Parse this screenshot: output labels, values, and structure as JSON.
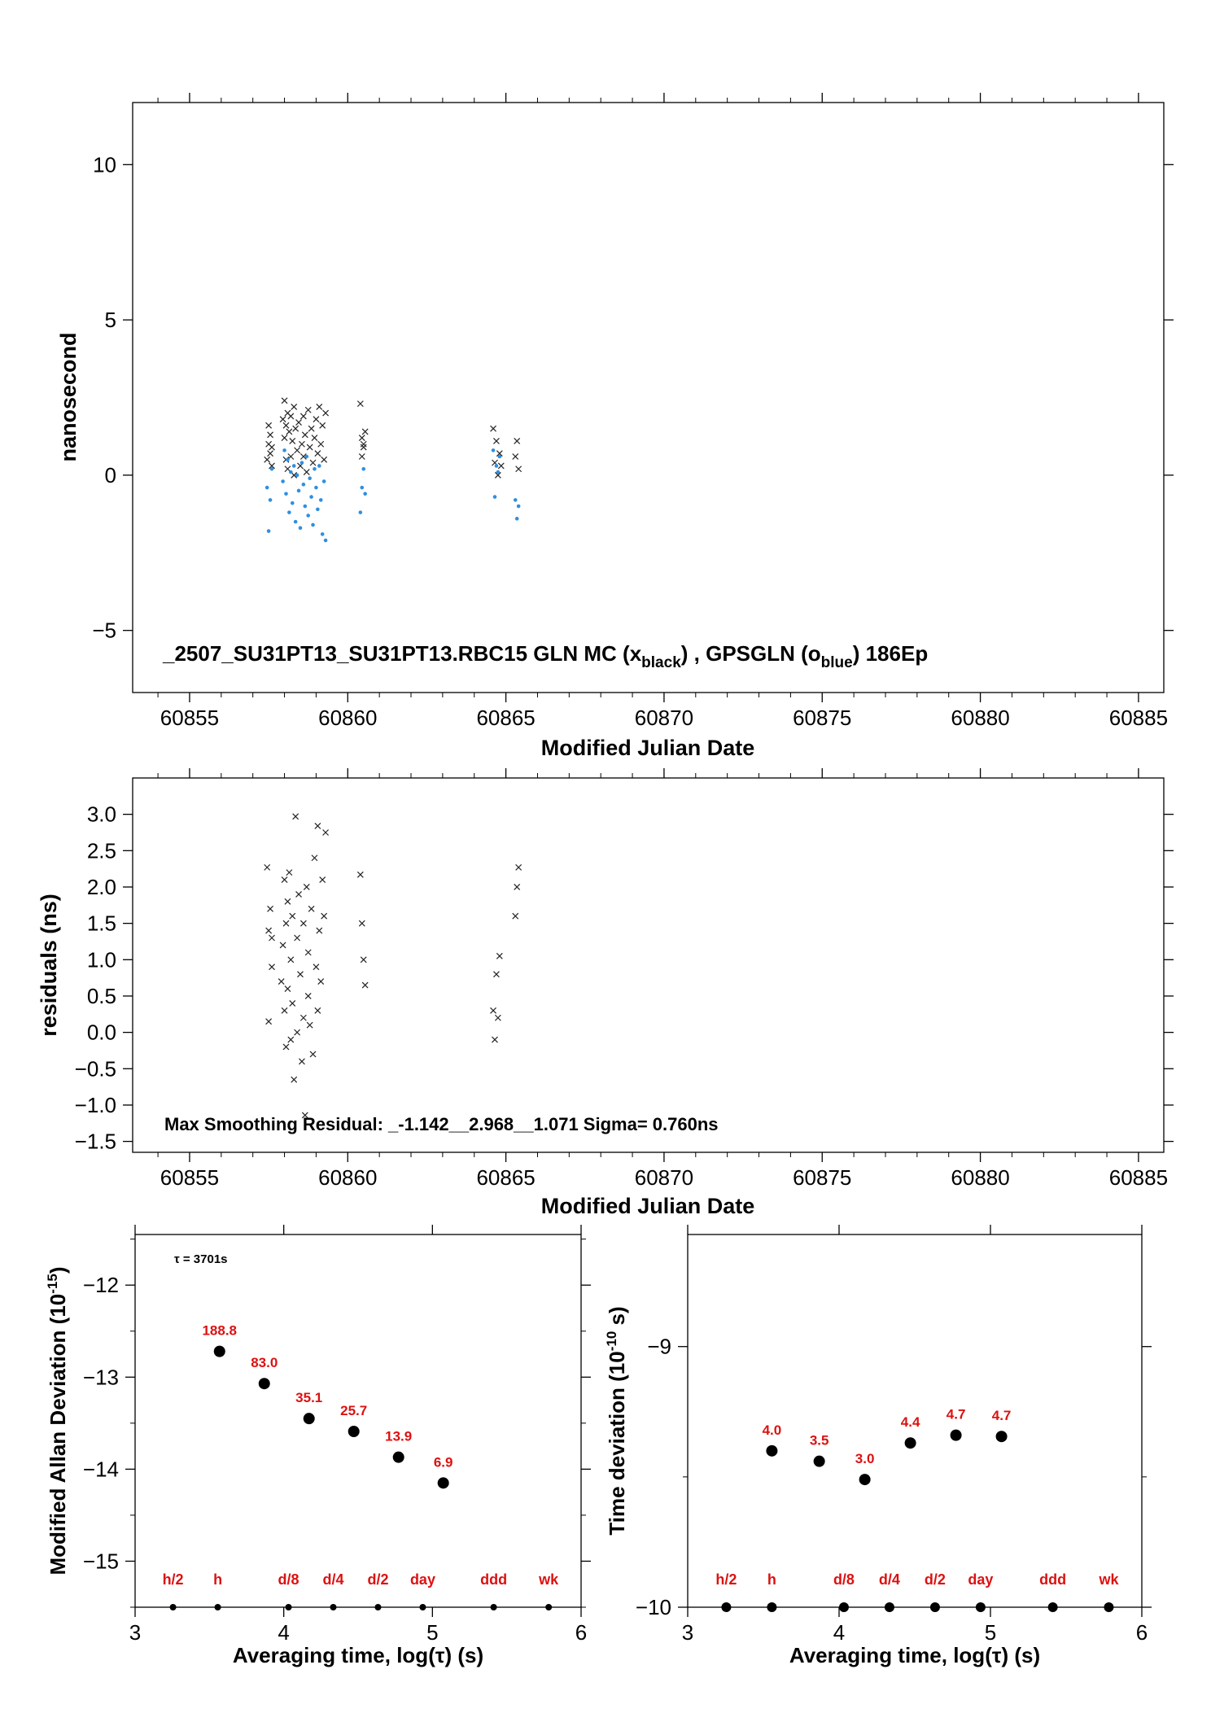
{
  "chart_data": [
    {
      "type": "scatter",
      "title": "",
      "annotation": {
        "prefix": "_2507_SU31PT13_SU31PT13.RBC15     GLN MC (x",
        "sub1": "black",
        "mid": ") ,  GPSGLN (o",
        "sub2": "blue",
        "suffix": ")  186Ep"
      },
      "xlabel": "Modified Julian Date",
      "ylabel": "nanosecond",
      "xlim": [
        60853.2,
        60885.8
      ],
      "ylim": [
        -7,
        12
      ],
      "xticks": [
        60855,
        60860,
        60865,
        60870,
        60875,
        60880,
        60885
      ],
      "xtick_labels": [
        "60855",
        "60860",
        "60865",
        "60870",
        "60875",
        "60880",
        "60885"
      ],
      "yticks": [
        -5,
        0,
        5,
        10
      ],
      "ytick_labels": [
        "−5",
        "0",
        "5",
        "10"
      ],
      "series": [
        {
          "color": "#222222",
          "marker": "x",
          "x": [
            60857.45,
            60857.5,
            60857.5,
            60857.55,
            60857.55,
            60857.6,
            60857.6,
            60857.95,
            60858.0,
            60858.0,
            60858.05,
            60858.05,
            60858.1,
            60858.1,
            60858.15,
            60858.2,
            60858.2,
            60858.25,
            60858.3,
            60858.3,
            60858.35,
            60858.4,
            60858.45,
            60858.5,
            60858.55,
            60858.6,
            60858.6,
            60858.65,
            60858.7,
            60858.75,
            60858.8,
            60858.85,
            60858.9,
            60858.95,
            60859.0,
            60859.05,
            60859.1,
            60859.15,
            60859.2,
            60859.25,
            60859.3,
            60860.4,
            60860.45,
            60860.45,
            60860.5,
            60860.5,
            60860.55,
            60864.6,
            60864.65,
            60864.7,
            60864.75,
            60864.8,
            60864.85,
            60865.3,
            60865.35,
            60865.4
          ],
          "y": [
            0.5,
            1.0,
            1.6,
            0.7,
            1.3,
            0.9,
            0.3,
            1.8,
            2.4,
            1.2,
            1.6,
            0.5,
            2.0,
            0.2,
            1.4,
            1.9,
            0.6,
            1.1,
            2.2,
            0.0,
            1.5,
            0.8,
            1.7,
            0.3,
            1.0,
            1.9,
            0.6,
            1.3,
            0.1,
            2.1,
            0.9,
            1.5,
            0.4,
            1.2,
            1.8,
            0.7,
            2.2,
            1.0,
            1.6,
            0.5,
            2.0,
            2.3,
            1.2,
            0.6,
            1.0,
            0.9,
            1.4,
            1.5,
            0.4,
            1.1,
            0.0,
            0.7,
            0.3,
            0.6,
            1.1,
            0.2
          ]
        },
        {
          "color": "#2f8fe0",
          "marker": "dot",
          "x": [
            60857.45,
            60857.5,
            60857.55,
            60857.6,
            60857.95,
            60858.0,
            60858.05,
            60858.1,
            60858.15,
            60858.2,
            60858.25,
            60858.3,
            60858.35,
            60858.4,
            60858.45,
            60858.5,
            60858.55,
            60858.6,
            60858.65,
            60858.7,
            60858.75,
            60858.8,
            60858.85,
            60858.9,
            60858.95,
            60859.0,
            60859.05,
            60859.1,
            60859.15,
            60859.2,
            60859.25,
            60859.3,
            60860.4,
            60860.45,
            60860.5,
            60860.55,
            60864.6,
            60864.65,
            60864.7,
            60864.75,
            60864.8,
            60865.3,
            60865.35,
            60865.4
          ],
          "y": [
            -0.4,
            -1.8,
            -0.8,
            0.2,
            -0.2,
            0.8,
            -0.6,
            0.5,
            -1.2,
            0.1,
            -0.9,
            0.3,
            -1.5,
            0.0,
            -0.5,
            -1.7,
            0.4,
            -0.3,
            -1.0,
            0.6,
            -1.3,
            -0.1,
            -0.7,
            -1.6,
            0.2,
            -0.4,
            -1.1,
            0.3,
            -0.8,
            -1.9,
            -0.2,
            -2.1,
            -1.2,
            -0.4,
            0.2,
            -0.6,
            0.8,
            -0.7,
            0.3,
            0.1,
            0.6,
            -0.8,
            -1.4,
            -1.0
          ]
        }
      ]
    },
    {
      "type": "scatter",
      "title": "",
      "annotation_text": "Max Smoothing Residual: _-1.142__2.968__1.071  Sigma= 0.760ns",
      "xlabel": "Modified Julian Date",
      "ylabel": "residuals (ns)",
      "xlim": [
        60853.2,
        60885.8
      ],
      "ylim": [
        -1.65,
        3.5
      ],
      "xticks": [
        60855,
        60860,
        60865,
        60870,
        60875,
        60880,
        60885
      ],
      "xtick_labels": [
        "60855",
        "60860",
        "60865",
        "60870",
        "60875",
        "60880",
        "60885"
      ],
      "yticks": [
        -1.5,
        -1.0,
        -0.5,
        0.0,
        0.5,
        1.0,
        1.5,
        2.0,
        2.5,
        3.0
      ],
      "ytick_labels": [
        "−1.5",
        "−1.0",
        "−0.5",
        "0.0",
        "0.5",
        "1.0",
        "1.5",
        "2.0",
        "2.5",
        "3.0"
      ],
      "series": [
        {
          "color": "#222222",
          "marker": "x",
          "x": [
            60857.45,
            60857.5,
            60857.5,
            60857.55,
            60857.6,
            60857.6,
            60857.9,
            60857.95,
            60858.0,
            60858.0,
            60858.05,
            60858.05,
            60858.1,
            60858.1,
            60858.15,
            60858.2,
            60858.2,
            60858.25,
            60858.25,
            60858.3,
            60858.35,
            60858.4,
            60858.4,
            60858.45,
            60858.5,
            60858.55,
            60858.6,
            60858.6,
            60858.65,
            60858.7,
            60858.75,
            60858.75,
            60858.8,
            60858.85,
            60858.9,
            60858.95,
            60859.0,
            60859.05,
            60859.05,
            60859.1,
            60859.15,
            60859.2,
            60859.25,
            60859.3,
            60860.4,
            60860.45,
            60860.5,
            60860.55,
            60864.6,
            60864.65,
            60864.7,
            60864.75,
            60864.8,
            60865.3,
            60865.35,
            60865.4
          ],
          "y": [
            2.27,
            1.4,
            0.15,
            1.7,
            1.3,
            0.9,
            0.7,
            1.2,
            2.1,
            0.3,
            1.5,
            -0.2,
            1.8,
            0.6,
            2.2,
            1.0,
            -0.1,
            1.6,
            0.4,
            -0.65,
            2.97,
            1.3,
            0.0,
            1.9,
            0.8,
            -0.4,
            1.5,
            0.2,
            -1.14,
            2.0,
            1.1,
            0.5,
            0.1,
            1.7,
            -0.3,
            2.4,
            0.9,
            2.84,
            0.3,
            1.4,
            0.7,
            2.1,
            1.6,
            2.75,
            2.17,
            1.5,
            1.0,
            0.65,
            0.3,
            -0.1,
            0.8,
            0.2,
            1.05,
            1.6,
            2.0,
            2.27
          ]
        }
      ]
    },
    {
      "type": "scatter",
      "title": "",
      "annotation_text": "τ = 3701s",
      "xlabel": "Averaging time, log(τ) (s)",
      "ylabel": "Modified Allan Deviation (10",
      "ylabel_sup": "-15",
      "ylabel_end": ")",
      "xlim": [
        3,
        6
      ],
      "ylim": [
        -15.5,
        -11.45
      ],
      "xticks": [
        3,
        4,
        5,
        6
      ],
      "xtick_labels": [
        "3",
        "4",
        "5",
        "6"
      ],
      "yticks": [
        -15,
        -14,
        -13,
        -12
      ],
      "ytick_labels": [
        "−15",
        "−14",
        "−13",
        "−12"
      ],
      "series": [
        {
          "color": "#000000",
          "x": [
            3.568,
            3.869,
            4.17,
            4.471,
            4.772,
            5.073
          ],
          "y": [
            -12.72,
            -13.07,
            -13.45,
            -13.59,
            -13.87,
            -14.15
          ],
          "point_labels": [
            "188.8",
            "83.0",
            "35.1",
            "25.7",
            "13.9",
            "6.9"
          ]
        }
      ],
      "markers": {
        "color": "#000000",
        "x": [
          3.255,
          3.556,
          4.032,
          4.333,
          4.634,
          4.935,
          5.412,
          5.782
        ],
        "labels": [
          "h/2",
          "h",
          "d/8",
          "d/4",
          "d/2",
          "day",
          "ddd",
          "wk"
        ]
      },
      "label_color": "#dd1111"
    },
    {
      "type": "scatter",
      "title": "",
      "xlabel": "Averaging time, log(τ) (s)",
      "ylabel": "Time deviation (10",
      "ylabel_sup": "-10",
      "ylabel_end": " s)",
      "xlim": [
        3,
        6
      ],
      "ylim": [
        -10.0,
        -8.57
      ],
      "xticks": [
        3,
        4,
        5,
        6
      ],
      "xtick_labels": [
        "3",
        "4",
        "5",
        "6"
      ],
      "yticks": [
        -10,
        -9
      ],
      "ytick_labels": [
        "−10",
        "−9"
      ],
      "series": [
        {
          "color": "#000000",
          "x": [
            3.556,
            3.869,
            4.17,
            4.471,
            4.772,
            5.073
          ],
          "y": [
            -9.4,
            -9.44,
            -9.51,
            -9.37,
            -9.34,
            -9.345
          ],
          "point_labels": [
            "4.0",
            "3.5",
            "3.0",
            "4.4",
            "4.7",
            "4.7"
          ]
        }
      ],
      "markers": {
        "color": "#000000",
        "x": [
          3.255,
          3.556,
          4.032,
          4.333,
          4.634,
          4.935,
          5.412,
          5.782
        ],
        "labels": [
          "h/2",
          "h",
          "d/8",
          "d/4",
          "d/2",
          "day",
          "ddd",
          "wk"
        ]
      },
      "label_color": "#dd1111"
    }
  ]
}
